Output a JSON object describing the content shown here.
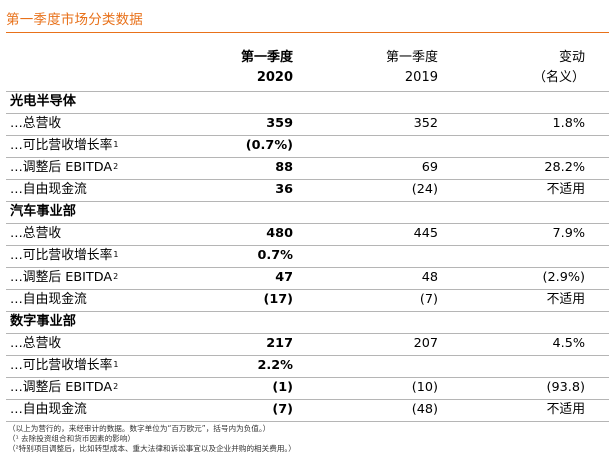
{
  "title": "第一季度市场分类数据",
  "header": {
    "col1_line1": "第一季度",
    "col1_line2": "2020",
    "col2_line1": "第一季度",
    "col2_line2": "2019",
    "col3_line1": "变动",
    "col3_line2": "（名义）"
  },
  "sections": [
    {
      "name": "光电半导体",
      "rows": [
        {
          "label": "…总营收",
          "sup": "",
          "v2020": "359",
          "v2019": "352",
          "change": "1.8%"
        },
        {
          "label": "…可比营收增长率",
          "sup": "1",
          "v2020": "(0.7%)",
          "v2019": "",
          "change": ""
        },
        {
          "label": "…调整后 EBITDA",
          "sup": "2",
          "v2020": "88",
          "v2019": "69",
          "change": "28.2%"
        },
        {
          "label": "…自由现金流",
          "sup": "",
          "v2020": "36",
          "v2019": "(24)",
          "change": "不适用"
        }
      ]
    },
    {
      "name": "汽车事业部",
      "rows": [
        {
          "label": "…总营收",
          "sup": "",
          "v2020": "480",
          "v2019": "445",
          "change": "7.9%"
        },
        {
          "label": "…可比营收增长率",
          "sup": "1",
          "v2020": "0.7%",
          "v2019": "",
          "change": ""
        },
        {
          "label": "…调整后 EBITDA",
          "sup": "2",
          "v2020": "47",
          "v2019": "48",
          "change": "(2.9%)"
        },
        {
          "label": "…自由现金流",
          "sup": "",
          "v2020": "(17)",
          "v2019": "(7)",
          "change": "不适用"
        }
      ]
    },
    {
      "name": "数字事业部",
      "rows": [
        {
          "label": "…总营收",
          "sup": "",
          "v2020": "217",
          "v2019": "207",
          "change": "4.5%"
        },
        {
          "label": "…可比营收增长率",
          "sup": "1",
          "v2020": "2.2%",
          "v2019": "",
          "change": ""
        },
        {
          "label": "…调整后 EBITDA",
          "sup": "2",
          "v2020": "(1)",
          "v2019": "(10)",
          "change": "(93.8)"
        },
        {
          "label": "…自由现金流",
          "sup": "",
          "v2020": "(7)",
          "v2019": "(48)",
          "change": "不适用"
        }
      ]
    }
  ],
  "footnotes": [
    "（以上为营行的，来经审计的数据。数字单位为“百万欧元”，括号内为负值。）",
    "（¹ 去除投资组合和货币因素的影响）",
    "（²特别项目调整后，比如转型成本、重大法律和诉讼事宜以及企业并购的相关费用。）"
  ],
  "colors": {
    "accent": "#e8711a",
    "rule": "#b5b5b5"
  }
}
